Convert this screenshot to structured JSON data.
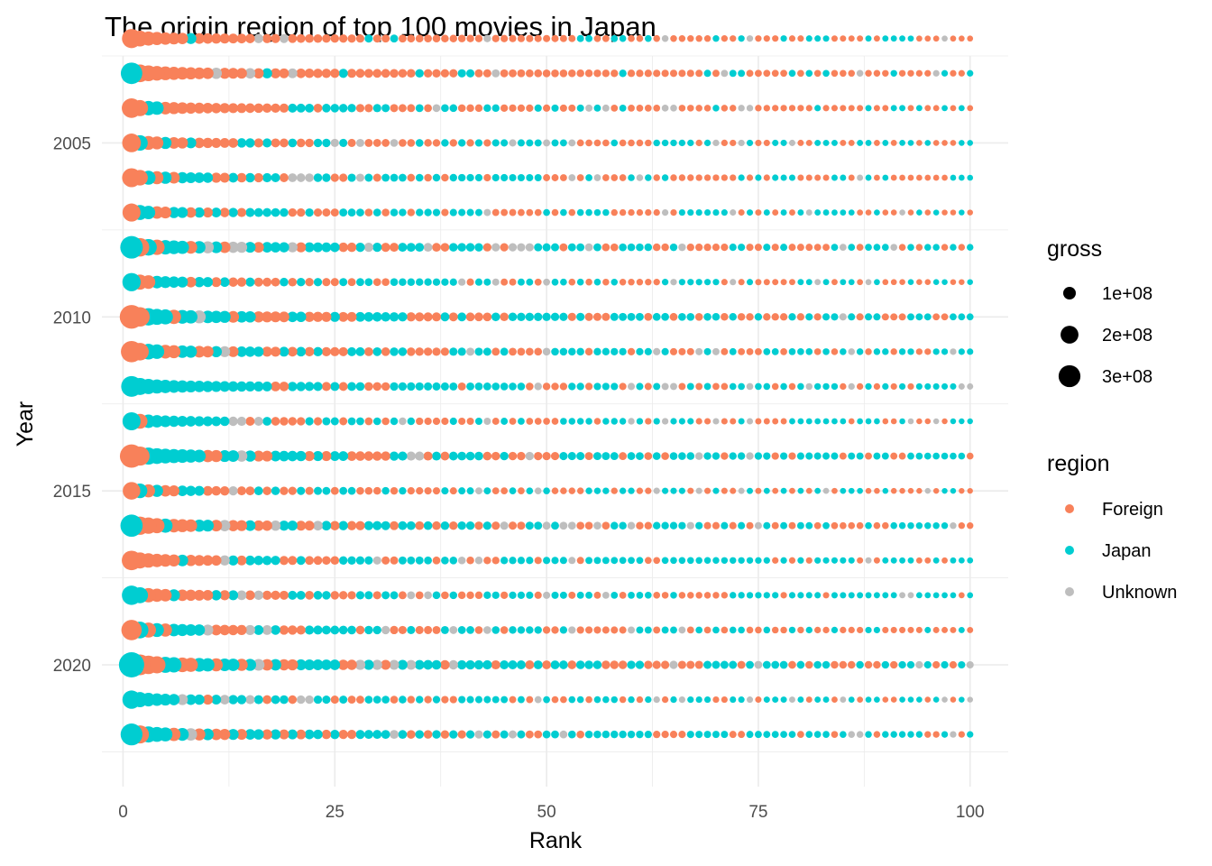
{
  "chart_data": {
    "type": "scatter",
    "title": "The origin region of top 100 movies in Japan",
    "xlabel": "Rank",
    "ylabel": "Year",
    "xlim": [
      -2.5,
      104.5
    ],
    "ylim": [
      2002.5,
      2023.5
    ],
    "y_reversed": true,
    "x_ticks": [
      0,
      25,
      50,
      75,
      100
    ],
    "x_tick_labels": [
      "0",
      "25",
      "50",
      "75",
      "100"
    ],
    "y_ticks": [
      2005,
      2010,
      2015,
      2020
    ],
    "y_tick_labels": [
      "2005",
      "2010",
      "2015",
      "2020"
    ],
    "years": [
      2002,
      2003,
      2004,
      2005,
      2006,
      2007,
      2008,
      2009,
      2010,
      2011,
      2012,
      2013,
      2014,
      2015,
      2016,
      2017,
      2018,
      2019,
      2020,
      2021,
      2022
    ],
    "ranks": [
      1,
      100
    ],
    "grid": true,
    "top_gross_by_year": [
      230000000,
      290000000,
      240000000,
      220000000,
      225000000,
      205000000,
      320000000,
      210000000,
      350000000,
      285000000,
      270000000,
      205000000,
      340000000,
      195000000,
      310000000,
      240000000,
      235000000,
      260000000,
      400000000,
      210000000,
      300000000
    ],
    "region_by_year_first10": [
      [
        "Foreign",
        "Foreign",
        "Foreign",
        "Foreign",
        "Foreign",
        "Foreign",
        "Foreign",
        "Japan",
        "Foreign",
        "Foreign"
      ],
      [
        "Japan",
        "Foreign",
        "Foreign",
        "Foreign",
        "Foreign",
        "Foreign",
        "Foreign",
        "Foreign",
        "Foreign",
        "Foreign"
      ],
      [
        "Foreign",
        "Foreign",
        "Japan",
        "Japan",
        "Foreign",
        "Foreign",
        "Foreign",
        "Foreign",
        "Foreign",
        "Foreign"
      ],
      [
        "Foreign",
        "Japan",
        "Foreign",
        "Foreign",
        "Japan",
        "Foreign",
        "Foreign",
        "Japan",
        "Foreign",
        "Foreign"
      ],
      [
        "Foreign",
        "Foreign",
        "Japan",
        "Foreign",
        "Japan",
        "Foreign",
        "Japan",
        "Japan",
        "Japan",
        "Japan"
      ],
      [
        "Foreign",
        "Japan",
        "Japan",
        "Foreign",
        "Foreign",
        "Japan",
        "Japan",
        "Foreign",
        "Japan",
        "Foreign"
      ],
      [
        "Japan",
        "Foreign",
        "Japan",
        "Foreign",
        "Japan",
        "Japan",
        "Japan",
        "Foreign",
        "Japan",
        "Unknown"
      ],
      [
        "Japan",
        "Foreign",
        "Foreign",
        "Japan",
        "Japan",
        "Japan",
        "Japan",
        "Foreign",
        "Japan",
        "Japan"
      ],
      [
        "Foreign",
        "Foreign",
        "Japan",
        "Japan",
        "Japan",
        "Foreign",
        "Japan",
        "Japan",
        "Unknown",
        "Japan"
      ],
      [
        "Foreign",
        "Foreign",
        "Japan",
        "Japan",
        "Foreign",
        "Foreign",
        "Japan",
        "Japan",
        "Foreign",
        "Foreign"
      ],
      [
        "Japan",
        "Japan",
        "Japan",
        "Japan",
        "Japan",
        "Japan",
        "Japan",
        "Japan",
        "Japan",
        "Japan"
      ],
      [
        "Japan",
        "Foreign",
        "Japan",
        "Japan",
        "Japan",
        "Japan",
        "Japan",
        "Japan",
        "Japan",
        "Japan"
      ],
      [
        "Foreign",
        "Foreign",
        "Japan",
        "Japan",
        "Japan",
        "Japan",
        "Japan",
        "Japan",
        "Japan",
        "Foreign"
      ],
      [
        "Foreign",
        "Japan",
        "Foreign",
        "Japan",
        "Foreign",
        "Foreign",
        "Japan",
        "Japan",
        "Japan",
        "Foreign"
      ],
      [
        "Japan",
        "Foreign",
        "Foreign",
        "Foreign",
        "Japan",
        "Foreign",
        "Foreign",
        "Foreign",
        "Japan",
        "Japan"
      ],
      [
        "Foreign",
        "Foreign",
        "Foreign",
        "Foreign",
        "Foreign",
        "Foreign",
        "Japan",
        "Foreign",
        "Foreign",
        "Foreign"
      ],
      [
        "Japan",
        "Japan",
        "Foreign",
        "Foreign",
        "Foreign",
        "Japan",
        "Foreign",
        "Foreign",
        "Foreign",
        "Foreign"
      ],
      [
        "Foreign",
        "Japan",
        "Foreign",
        "Japan",
        "Foreign",
        "Japan",
        "Japan",
        "Japan",
        "Japan",
        "Unknown"
      ],
      [
        "Japan",
        "Foreign",
        "Foreign",
        "Foreign",
        "Japan",
        "Japan",
        "Foreign",
        "Foreign",
        "Japan",
        "Japan"
      ],
      [
        "Japan",
        "Japan",
        "Japan",
        "Japan",
        "Japan",
        "Japan",
        "Unknown",
        "Japan",
        "Japan",
        "Foreign"
      ],
      [
        "Japan",
        "Foreign",
        "Japan",
        "Japan",
        "Japan",
        "Foreign",
        "Japan",
        "Unknown",
        "Foreign",
        "Japan"
      ]
    ],
    "region_share_rank11_100": [
      {
        "Foreign": 0.7,
        "Japan": 0.2,
        "Unknown": 0.1
      },
      {
        "Foreign": 0.75,
        "Japan": 0.17,
        "Unknown": 0.08
      },
      {
        "Foreign": 0.68,
        "Japan": 0.25,
        "Unknown": 0.07
      },
      {
        "Foreign": 0.5,
        "Japan": 0.42,
        "Unknown": 0.08
      },
      {
        "Foreign": 0.45,
        "Japan": 0.45,
        "Unknown": 0.1
      },
      {
        "Foreign": 0.4,
        "Japan": 0.52,
        "Unknown": 0.08
      },
      {
        "Foreign": 0.45,
        "Japan": 0.45,
        "Unknown": 0.1
      },
      {
        "Foreign": 0.45,
        "Japan": 0.45,
        "Unknown": 0.1
      },
      {
        "Foreign": 0.4,
        "Japan": 0.52,
        "Unknown": 0.08
      },
      {
        "Foreign": 0.35,
        "Japan": 0.55,
        "Unknown": 0.1
      },
      {
        "Foreign": 0.4,
        "Japan": 0.52,
        "Unknown": 0.08
      },
      {
        "Foreign": 0.4,
        "Japan": 0.5,
        "Unknown": 0.1
      },
      {
        "Foreign": 0.35,
        "Japan": 0.58,
        "Unknown": 0.07
      },
      {
        "Foreign": 0.5,
        "Japan": 0.4,
        "Unknown": 0.1
      },
      {
        "Foreign": 0.4,
        "Japan": 0.52,
        "Unknown": 0.08
      },
      {
        "Foreign": 0.35,
        "Japan": 0.55,
        "Unknown": 0.1
      },
      {
        "Foreign": 0.35,
        "Japan": 0.55,
        "Unknown": 0.1
      },
      {
        "Foreign": 0.45,
        "Japan": 0.45,
        "Unknown": 0.1
      },
      {
        "Foreign": 0.35,
        "Japan": 0.58,
        "Unknown": 0.07
      },
      {
        "Foreign": 0.3,
        "Japan": 0.58,
        "Unknown": 0.12
      },
      {
        "Foreign": 0.4,
        "Japan": 0.48,
        "Unknown": 0.12
      }
    ],
    "legend_size": {
      "title": "gross",
      "breaks": [
        100000000,
        200000000,
        300000000
      ],
      "labels": [
        "1e+08",
        "2e+08",
        "3e+08"
      ]
    },
    "legend_color": {
      "title": "region",
      "placement": "right",
      "entries": [
        {
          "label": "Foreign",
          "color": "#F8815A"
        },
        {
          "label": "Japan",
          "color": "#00CDD1"
        },
        {
          "label": "Unknown",
          "color": "#BEBEBE"
        }
      ]
    }
  }
}
